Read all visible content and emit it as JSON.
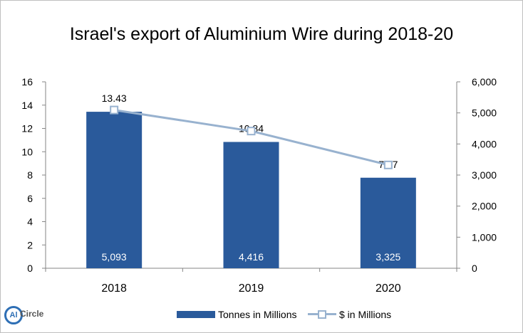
{
  "chart_data": {
    "type": "bar",
    "title": "Israel's export of Aluminium Wire during 2018-20",
    "categories": [
      "2018",
      "2019",
      "2020"
    ],
    "series": [
      {
        "name": "Tonnes in Millions",
        "type": "bar",
        "axis": "left",
        "values": [
          13.43,
          10.84,
          7.77
        ],
        "labels": [
          "13.43",
          "10.84",
          "7.77"
        ],
        "inner_labels": [
          "5,093",
          "4,416",
          "3,325"
        ],
        "color": "#2a5a9b"
      },
      {
        "name": "$ in Millions",
        "type": "line",
        "axis": "right",
        "values": [
          5093,
          4416,
          3325
        ],
        "color": "#98b2cf"
      }
    ],
    "y_left": {
      "ylim": [
        0,
        16
      ],
      "ticks": [
        "0",
        "2",
        "4",
        "6",
        "8",
        "10",
        "12",
        "14",
        "16"
      ]
    },
    "y_right": {
      "ylim": [
        0,
        6000
      ],
      "ticks": [
        "0",
        "1,000",
        "2,000",
        "3,000",
        "4,000",
        "5,000",
        "6,000"
      ]
    },
    "grid": false,
    "legend_position": "bottom"
  },
  "logo": {
    "mark": "Al",
    "name": "Circle"
  }
}
